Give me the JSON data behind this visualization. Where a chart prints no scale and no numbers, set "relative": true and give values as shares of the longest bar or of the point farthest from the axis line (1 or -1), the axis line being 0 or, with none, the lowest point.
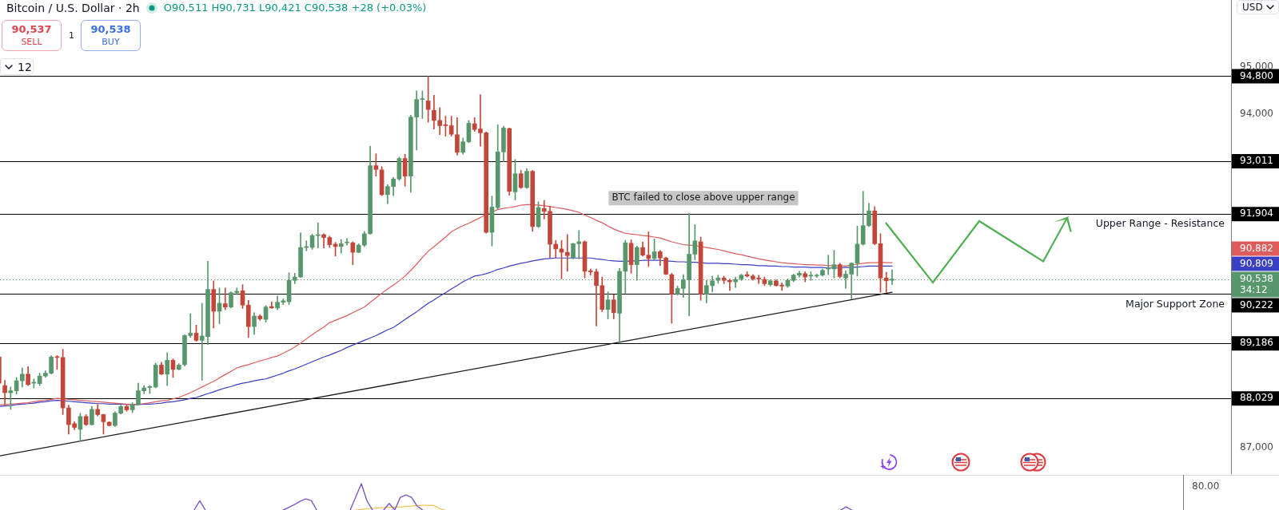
{
  "chart_data": [
    {
      "type": "candlestick",
      "title": "Bitcoin / U.S. Dollar · 2h",
      "subtitle": "O90,511 H90,731 L90,421 C90,538 +28 (+0.03%)",
      "categories": [
        null,
        null,
        null,
        null,
        null,
        null,
        null,
        null,
        null,
        null,
        null,
        null,
        null,
        null,
        null,
        null,
        null,
        null,
        null,
        null,
        null,
        null,
        null,
        null,
        null,
        null,
        null,
        null,
        null,
        null,
        null,
        null,
        null,
        null,
        null,
        null,
        null,
        null,
        null,
        null,
        null,
        null,
        null,
        null,
        null,
        null,
        null,
        null,
        null,
        null,
        null,
        null,
        null,
        null,
        null,
        null,
        null,
        null,
        null,
        null,
        null,
        null,
        null,
        null,
        null,
        null,
        null,
        null,
        null,
        null,
        null,
        null,
        null,
        null,
        null,
        null,
        null,
        null,
        null,
        null,
        null,
        null,
        null,
        null,
        null,
        null,
        null,
        null,
        null,
        null,
        null,
        null,
        null,
        null,
        null,
        null,
        null,
        null,
        null,
        null,
        null,
        null,
        null,
        null,
        null,
        null,
        null,
        null,
        null,
        null,
        null,
        null,
        null,
        null,
        null,
        null,
        null,
        null,
        null,
        null,
        null,
        null,
        null,
        null,
        null,
        null,
        null,
        null,
        null,
        null,
        null,
        null,
        null,
        null,
        null,
        null,
        null,
        null,
        null,
        null,
        null,
        null,
        null,
        null,
        null,
        null,
        null,
        null,
        null,
        null,
        null,
        null,
        null,
        null,
        null
      ],
      "ohlc": [
        [
          88900,
          88930,
          88320,
          88350
        ],
        [
          88300,
          88410,
          87890,
          88150
        ],
        [
          88150,
          88270,
          87800,
          88190
        ],
        [
          88190,
          88470,
          88120,
          88400
        ],
        [
          88400,
          88670,
          88270,
          88540
        ],
        [
          88540,
          88700,
          88300,
          88320
        ],
        [
          88350,
          88440,
          88250,
          88370
        ],
        [
          88340,
          88560,
          88300,
          88500
        ],
        [
          88500,
          88610,
          88470,
          88560
        ],
        [
          88560,
          88930,
          88540,
          88900
        ],
        [
          88900,
          88930,
          88640,
          88890
        ],
        [
          88890,
          89060,
          87690,
          87830
        ],
        [
          87830,
          87890,
          87280,
          87480
        ],
        [
          87500,
          87540,
          87370,
          87420
        ],
        [
          87380,
          87720,
          87130,
          87650
        ],
        [
          87650,
          87690,
          87460,
          87480
        ],
        [
          87480,
          87860,
          87470,
          87800
        ],
        [
          87800,
          87900,
          87660,
          87690
        ],
        [
          87690,
          87700,
          87280,
          87540
        ],
        [
          87530,
          87540,
          87450,
          87460
        ],
        [
          87460,
          87750,
          87440,
          87720
        ],
        [
          87720,
          87890,
          87700,
          87860
        ],
        [
          87860,
          87890,
          87760,
          87790
        ],
        [
          87790,
          87940,
          87730,
          87900
        ],
        [
          87900,
          88350,
          87890,
          88190
        ],
        [
          88190,
          88300,
          88130,
          88250
        ],
        [
          88260,
          88300,
          88130,
          88280
        ],
        [
          88270,
          88770,
          88250,
          88730
        ],
        [
          88730,
          88790,
          88530,
          88540
        ],
        [
          88540,
          88990,
          88300,
          88830
        ],
        [
          88830,
          88860,
          88470,
          88640
        ],
        [
          88640,
          88760,
          88630,
          88730
        ],
        [
          88740,
          89370,
          88710,
          89350
        ],
        [
          89350,
          89810,
          89310,
          89400
        ],
        [
          89400,
          89570,
          89230,
          89250
        ],
        [
          89250,
          90030,
          88410,
          89340
        ],
        [
          89330,
          90910,
          89160,
          90320
        ],
        [
          90320,
          90500,
          89510,
          89860
        ],
        [
          89860,
          90350,
          89600,
          90030
        ],
        [
          90020,
          90350,
          89890,
          89950
        ],
        [
          89950,
          90270,
          89930,
          90250
        ],
        [
          90250,
          90350,
          90210,
          90280
        ],
        [
          90290,
          90420,
          89920,
          89990
        ],
        [
          89990,
          90090,
          89310,
          89540
        ],
        [
          89540,
          89830,
          89370,
          89760
        ],
        [
          89760,
          89790,
          89670,
          89700
        ],
        [
          89690,
          89980,
          89630,
          89950
        ],
        [
          89960,
          90060,
          89920,
          89930
        ],
        [
          89930,
          90180,
          89890,
          90050
        ],
        [
          90050,
          90120,
          90000,
          90080
        ],
        [
          90060,
          90670,
          90000,
          90510
        ],
        [
          90510,
          90660,
          90440,
          90580
        ],
        [
          90580,
          91510,
          90570,
          91200
        ],
        [
          91200,
          91340,
          91130,
          91220
        ],
        [
          91200,
          91480,
          91160,
          91450
        ],
        [
          91450,
          91720,
          91190,
          91470
        ],
        [
          91470,
          91490,
          91190,
          91410
        ],
        [
          91410,
          91440,
          91200,
          91260
        ],
        [
          91270,
          91310,
          91020,
          91220
        ],
        [
          91220,
          91370,
          91080,
          91280
        ],
        [
          91300,
          91390,
          91250,
          91310
        ],
        [
          91300,
          91320,
          90840,
          91100
        ],
        [
          91100,
          91280,
          91090,
          91250
        ],
        [
          91250,
          91540,
          91220,
          91490
        ],
        [
          91490,
          93330,
          91480,
          92920
        ],
        [
          92920,
          93170,
          92700,
          92840
        ],
        [
          92830,
          92900,
          92290,
          92310
        ],
        [
          92310,
          92520,
          92120,
          92480
        ],
        [
          92480,
          92670,
          92290,
          92640
        ],
        [
          92640,
          93100,
          92610,
          93070
        ],
        [
          93070,
          93160,
          92490,
          92700
        ],
        [
          92700,
          93980,
          92360,
          93940
        ],
        [
          93940,
          94490,
          93250,
          94310
        ],
        [
          94310,
          94490,
          93910,
          94320
        ],
        [
          94280,
          94800,
          93830,
          94100
        ],
        [
          94080,
          94400,
          93690,
          93870
        ],
        [
          93870,
          94140,
          93570,
          93760
        ],
        [
          93780,
          93960,
          93540,
          93760
        ],
        [
          93760,
          93960,
          93540,
          93580
        ],
        [
          93570,
          93930,
          93140,
          93200
        ],
        [
          93200,
          93500,
          93160,
          93420
        ],
        [
          93420,
          93870,
          93400,
          93810
        ],
        [
          93800,
          93930,
          93640,
          93680
        ],
        [
          93690,
          94410,
          93330,
          93610
        ],
        [
          93610,
          93630,
          91500,
          91520
        ],
        [
          91520,
          92280,
          91230,
          92050
        ],
        [
          92040,
          93780,
          92010,
          93210
        ],
        [
          93210,
          93750,
          93000,
          93710
        ],
        [
          93700,
          93710,
          92300,
          92380
        ],
        [
          92370,
          93050,
          92200,
          92750
        ],
        [
          92750,
          92820,
          92440,
          92460
        ],
        [
          92460,
          92860,
          92440,
          92800
        ],
        [
          92800,
          92820,
          91540,
          91640
        ],
        [
          91640,
          92160,
          91620,
          92040
        ],
        [
          92020,
          92190,
          91800,
          91960
        ],
        [
          91960,
          92070,
          90990,
          91270
        ],
        [
          91270,
          91350,
          90990,
          91170
        ],
        [
          91170,
          91350,
          90540,
          91100
        ],
        [
          91100,
          91470,
          90700,
          91030
        ],
        [
          90990,
          91290,
          90960,
          91280
        ],
        [
          91280,
          91560,
          90960,
          91320
        ],
        [
          91320,
          91340,
          90560,
          90700
        ],
        [
          90710,
          90750,
          90620,
          90690
        ],
        [
          90690,
          90750,
          89550,
          90400
        ],
        [
          90400,
          90580,
          89850,
          89900
        ],
        [
          89900,
          90270,
          89700,
          90100
        ],
        [
          90100,
          90210,
          89700,
          89830
        ],
        [
          89820,
          90760,
          89190,
          90700
        ],
        [
          90700,
          91350,
          90240,
          91300
        ],
        [
          91290,
          91360,
          90660,
          90840
        ],
        [
          90840,
          91230,
          90510,
          91200
        ],
        [
          91200,
          91320,
          91020,
          91040
        ],
        [
          91040,
          91530,
          90800,
          90970
        ],
        [
          90970,
          91380,
          90940,
          91110
        ],
        [
          91110,
          91140,
          90820,
          90980
        ],
        [
          90980,
          91000,
          90630,
          90640
        ],
        [
          90630,
          90660,
          89610,
          90220
        ],
        [
          90220,
          90390,
          90200,
          90340
        ],
        [
          90340,
          90630,
          90150,
          90520
        ],
        [
          90520,
          91920,
          89760,
          91060
        ],
        [
          91060,
          91680,
          90940,
          91340
        ],
        [
          91320,
          91420,
          90090,
          90220
        ],
        [
          90220,
          90510,
          90040,
          90400
        ],
        [
          90400,
          90600,
          90270,
          90500
        ],
        [
          90510,
          90620,
          90450,
          90560
        ],
        [
          90560,
          90600,
          90440,
          90510
        ],
        [
          90510,
          90540,
          90300,
          90480
        ],
        [
          90480,
          90580,
          90360,
          90530
        ],
        [
          90540,
          90640,
          90510,
          90620
        ],
        [
          90630,
          90690,
          90580,
          90600
        ],
        [
          90600,
          90630,
          90510,
          90540
        ],
        [
          90560,
          90620,
          90440,
          90540
        ],
        [
          90530,
          90580,
          90400,
          90440
        ],
        [
          90420,
          90520,
          90390,
          90500
        ],
        [
          90500,
          90520,
          90390,
          90400
        ],
        [
          90410,
          90460,
          90300,
          90390
        ],
        [
          90390,
          90540,
          90360,
          90510
        ],
        [
          90510,
          90640,
          90480,
          90620
        ],
        [
          90620,
          90700,
          90580,
          90660
        ],
        [
          90650,
          90690,
          90480,
          90580
        ],
        [
          90600,
          90690,
          90510,
          90620
        ],
        [
          90600,
          90640,
          90570,
          90620
        ],
        [
          90620,
          90750,
          90600,
          90720
        ],
        [
          90750,
          91040,
          90630,
          90770
        ],
        [
          90750,
          91140,
          90560,
          90840
        ],
        [
          90840,
          90870,
          90560,
          90590
        ],
        [
          90560,
          90710,
          90340,
          90640
        ],
        [
          90640,
          90880,
          90120,
          90870
        ],
        [
          90870,
          91650,
          90600,
          91270
        ],
        [
          91270,
          92380,
          91250,
          91660
        ],
        [
          91660,
          92130,
          91640,
          91970
        ],
        [
          91970,
          92060,
          91260,
          91280
        ],
        [
          91280,
          91490,
          90260,
          90560
        ],
        [
          90560,
          90680,
          90250,
          90500
        ],
        [
          90511,
          90731,
          90421,
          90538
        ]
      ],
      "colors": [
        "#c2473a",
        "#c2473a",
        "#58976b",
        "#58976b",
        "#58976b",
        "#c2473a",
        "#58976b",
        "#58976b",
        "#58976b",
        "#58976b",
        "#c2473a",
        "#c2473a",
        "#c2473a",
        "#c2473a",
        "#58976b",
        "#c2473a",
        "#58976b",
        "#c2473a",
        "#c2473a",
        "#c2473a",
        "#58976b",
        "#58976b",
        "#c2473a",
        "#58976b",
        "#58976b",
        "#58976b",
        "#58976b",
        "#58976b",
        "#c2473a",
        "#58976b",
        "#c2473a",
        "#58976b",
        "#58976b",
        "#58976b",
        "#c2473a",
        "#58976b",
        "#58976b",
        "#c2473a",
        "#58976b",
        "#c2473a",
        "#58976b",
        "#58976b",
        "#c2473a",
        "#c2473a",
        "#58976b",
        "#c2473a",
        "#58976b",
        "#c2473a",
        "#58976b",
        "#58976b",
        "#58976b",
        "#58976b",
        "#58976b",
        "#58976b",
        "#58976b",
        "#58976b",
        "#c2473a",
        "#c2473a",
        "#c2473a",
        "#58976b",
        "#58976b",
        "#c2473a",
        "#58976b",
        "#58976b",
        "#58976b",
        "#c2473a",
        "#c2473a",
        "#58976b",
        "#58976b",
        "#58976b",
        "#c2473a",
        "#58976b",
        "#58976b",
        "#58976b",
        "#c2473a",
        "#c2473a",
        "#c2473a",
        "#c2473a",
        "#c2473a",
        "#c2473a",
        "#58976b",
        "#58976b",
        "#c2473a",
        "#c2473a",
        "#c2473a",
        "#58976b",
        "#58976b",
        "#58976b",
        "#c2473a",
        "#58976b",
        "#c2473a",
        "#58976b",
        "#c2473a",
        "#58976b",
        "#c2473a",
        "#c2473a",
        "#c2473a",
        "#c2473a",
        "#c2473a",
        "#58976b",
        "#58976b",
        "#c2473a",
        "#c2473a",
        "#c2473a",
        "#c2473a",
        "#58976b",
        "#c2473a",
        "#58976b",
        "#58976b",
        "#c2473a",
        "#58976b",
        "#c2473a",
        "#c2473a",
        "#58976b",
        "#c2473a",
        "#c2473a",
        "#c2473a",
        "#58976b",
        "#58976b",
        "#58976b",
        "#58976b",
        "#c2473a",
        "#58976b",
        "#58976b",
        "#58976b",
        "#c2473a",
        "#c2473a",
        "#58976b",
        "#58976b",
        "#c2473a",
        "#c2473a",
        "#c2473a",
        "#c2473a",
        "#58976b",
        "#c2473a",
        "#c2473a",
        "#58976b",
        "#58976b",
        "#58976b",
        "#c2473a",
        "#58976b",
        "#58976b",
        "#58976b",
        "#58976b",
        "#58976b",
        "#c2473a",
        "#58976b",
        "#58976b",
        "#58976b",
        "#58976b",
        "#58976b",
        "#c2473a",
        "#c2473a",
        "#c2473a",
        "#58976b"
      ],
      "series": [
        {
          "type": "line",
          "color": "#e05c5c",
          "values": [
            87890,
            87900,
            87910,
            87920,
            87930,
            87940,
            87960,
            87980,
            87990,
            88010,
            88030,
            88020,
            88010,
            88000,
            87990,
            87980,
            87970,
            87960,
            87950,
            87940,
            87930,
            87920,
            87910,
            87900,
            87910,
            87920,
            87940,
            87960,
            87980,
            87990,
            88020,
            88050,
            88100,
            88150,
            88210,
            88270,
            88330,
            88390,
            88460,
            88530,
            88600,
            88670,
            88710,
            88740,
            88780,
            88820,
            88850,
            88890,
            88920,
            88980,
            89040,
            89110,
            89190,
            89280,
            89370,
            89450,
            89530,
            89620,
            89670,
            89720,
            89770,
            89830,
            89890,
            89950,
            90050,
            90140,
            90240,
            90330,
            90410,
            90500,
            90600,
            90720,
            90850,
            90990,
            91120,
            91220,
            91320,
            91420,
            91530,
            91600,
            91660,
            91710,
            91770,
            91830,
            91890,
            91940,
            92000,
            92020,
            92040,
            92060,
            92090,
            92100,
            92100,
            92090,
            92080,
            92060,
            92040,
            92020,
            92000,
            91970,
            91940,
            91880,
            91830,
            91770,
            91720,
            91650,
            91590,
            91540,
            91500,
            91480,
            91470,
            91450,
            91440,
            91420,
            91400,
            91360,
            91320,
            91290,
            91260,
            91250,
            91240,
            91220,
            91200,
            91180,
            91160,
            91130,
            91100,
            91070,
            91050,
            91020,
            90990,
            90960,
            90940,
            90920,
            90900,
            90880,
            90870,
            90860,
            90850,
            90840,
            90840,
            90830,
            90830,
            90820,
            90820,
            90810,
            90810,
            90830,
            90850,
            90870,
            90880,
            90880,
            90890,
            90880,
            90882
          ]
        },
        {
          "type": "line",
          "color": "#3b3fc4",
          "values": [
            87860,
            87870,
            87880,
            87900,
            87910,
            87920,
            87930,
            87950,
            87960,
            87980,
            87990,
            87980,
            87970,
            87960,
            87950,
            87940,
            87930,
            87920,
            87920,
            87910,
            87910,
            87910,
            87900,
            87900,
            87900,
            87910,
            87910,
            87920,
            87930,
            87950,
            87960,
            87980,
            88000,
            88030,
            88050,
            88090,
            88130,
            88170,
            88210,
            88250,
            88280,
            88320,
            88350,
            88370,
            88400,
            88420,
            88440,
            88480,
            88520,
            88560,
            88610,
            88650,
            88700,
            88750,
            88800,
            88850,
            88900,
            88940,
            88990,
            89040,
            89100,
            89150,
            89200,
            89250,
            89300,
            89350,
            89410,
            89470,
            89520,
            89600,
            89690,
            89770,
            89850,
            89940,
            90030,
            90100,
            90180,
            90250,
            90330,
            90400,
            90480,
            90540,
            90600,
            90620,
            90650,
            90690,
            90740,
            90770,
            90810,
            90840,
            90870,
            90890,
            90920,
            90940,
            90960,
            90970,
            90980,
            90980,
            90980,
            90980,
            90980,
            90980,
            90980,
            90960,
            90950,
            90930,
            90920,
            90910,
            90910,
            90920,
            90920,
            90930,
            90930,
            90930,
            90930,
            90920,
            90910,
            90900,
            90900,
            90890,
            90890,
            90880,
            90870,
            90870,
            90870,
            90860,
            90860,
            90850,
            90840,
            90840,
            90830,
            90820,
            90820,
            90810,
            90810,
            90800,
            90800,
            90790,
            90790,
            90790,
            90780,
            90780,
            90780,
            90770,
            90770,
            90770,
            90780,
            90780,
            90790,
            90800,
            90810,
            90810,
            90810,
            90810,
            90809
          ]
        },
        {
          "type": "line",
          "color": "#1a1a1a",
          "values": [
            86820,
            null,
            null,
            null,
            null,
            null,
            null,
            null,
            null,
            null,
            null,
            null,
            null,
            null,
            null,
            null,
            null,
            null,
            null,
            null,
            null,
            null,
            null,
            null,
            null,
            null,
            null,
            null,
            null,
            null,
            null,
            null,
            null,
            null,
            null,
            null,
            null,
            null,
            null,
            null,
            null,
            null,
            null,
            null,
            null,
            null,
            null,
            null,
            null,
            null,
            null,
            null,
            null,
            null,
            null,
            null,
            null,
            null,
            null,
            null,
            null,
            null,
            null,
            null,
            null,
            null,
            null,
            null,
            null,
            null,
            null,
            null,
            null,
            null,
            null,
            null,
            null,
            null,
            null,
            null,
            null,
            null,
            null,
            null,
            null,
            null,
            null,
            null,
            null,
            null,
            null,
            null,
            null,
            null,
            null,
            null,
            null,
            null,
            null,
            null,
            null,
            null,
            null,
            null,
            null,
            null,
            null,
            null,
            null,
            null,
            null,
            null,
            null,
            null,
            null,
            null,
            null,
            null,
            null,
            null,
            null,
            null,
            null,
            null,
            null,
            null,
            null,
            null,
            null,
            null,
            null,
            null,
            null,
            null,
            null,
            null,
            null,
            null,
            null,
            null,
            null,
            null,
            null,
            null,
            null,
            null,
            null,
            null,
            null,
            null,
            null,
            null,
            null,
            null,
            90260
          ]
        }
      ],
      "ref_lines": [
        {
          "axis": "y",
          "value": 94800,
          "label": "94,800",
          "color": "#000000"
        },
        {
          "axis": "y",
          "value": 93011,
          "label": "93,011",
          "color": "#000000"
        },
        {
          "axis": "y",
          "value": 91904,
          "label": "91,904",
          "color": "#000000"
        },
        {
          "axis": "y",
          "value": 90222,
          "label": "90,222",
          "color": "#000000"
        },
        {
          "axis": "y",
          "value": 89186,
          "label": "89,186",
          "color": "#000000"
        },
        {
          "axis": "y",
          "value": 88029,
          "label": "88,029",
          "color": "#000000"
        },
        {
          "axis": "y",
          "value": 90538,
          "label": "90,538",
          "color": "#58976b",
          "line_style": "dotted"
        }
      ],
      "annotations": [
        {
          "text": "BTC failed to close above upper range",
          "y": 91904
        },
        {
          "text": "Upper Range - Resistance",
          "y": 91904
        },
        {
          "text": "Major Support Zone",
          "y": 90222
        },
        "34:12",
        "90,882",
        "90,809",
        "90,537",
        "SELL",
        "1",
        "90,538",
        "BUY",
        "12",
        "USD"
      ],
      "ylim": [
        86440,
        96400
      ],
      "yticks": [
        {
          "value": 87000,
          "label": "87,000"
        },
        {
          "value": 94000,
          "label": "94,000"
        },
        {
          "value": 95000,
          "label": "95,000"
        }
      ],
      "tick_labels": "y"
    },
    {
      "type": "line",
      "relative": true,
      "categories": [
        null,
        null,
        null,
        null,
        null,
        null,
        null,
        null,
        null,
        null,
        null,
        null,
        null,
        null,
        null,
        null,
        null,
        null,
        null,
        null,
        null,
        null,
        null,
        null,
        null,
        null,
        null,
        null,
        null,
        null,
        null,
        null,
        null,
        null,
        null,
        null,
        null,
        null,
        null,
        null,
        null,
        null,
        null,
        null,
        null,
        null,
        null,
        null,
        null,
        null,
        null,
        null,
        null,
        null,
        null,
        null,
        null,
        null,
        null,
        null,
        null,
        null,
        null,
        null,
        null,
        null,
        null,
        null,
        null,
        null,
        null,
        null,
        null,
        null,
        null,
        null,
        null,
        null,
        null,
        null,
        null,
        null,
        null,
        null,
        null,
        null,
        null,
        null,
        null,
        null,
        null,
        null,
        null,
        null,
        null,
        null,
        null,
        null,
        null,
        null,
        null,
        null,
        null,
        null,
        null,
        null,
        null,
        null,
        null,
        null,
        null,
        null,
        null,
        null,
        null,
        null,
        null,
        null,
        null,
        null,
        null,
        null,
        null,
        null,
        null,
        null,
        null,
        null,
        null,
        null,
        null,
        null,
        null,
        null,
        null,
        null,
        null,
        null,
        null,
        null,
        null,
        null,
        null,
        null,
        null,
        null,
        null,
        null,
        null,
        null,
        null,
        null,
        null,
        null,
        null
      ],
      "series": [
        {
          "color": "#7e57c2",
          "values": [
            null,
            null,
            null,
            null,
            null,
            null,
            null,
            null,
            null,
            null,
            null,
            null,
            null,
            null,
            null,
            null,
            null,
            null,
            null,
            null,
            null,
            null,
            null,
            null,
            null,
            null,
            null,
            null,
            null,
            null,
            null,
            null,
            null,
            null,
            null,
            0,
            0.35,
            0,
            null,
            null,
            null,
            null,
            null,
            null,
            null,
            null,
            null,
            null,
            null,
            null,
            null,
            0,
            0.1,
            0.21,
            0.33,
            0.42,
            0.36,
            0,
            null,
            null,
            null,
            null,
            null,
            0,
            0.5,
            1,
            0.35,
            0,
            null,
            0,
            0.25,
            0,
            0.48,
            0.57,
            0.48,
            0.15,
            0,
            null,
            null,
            null,
            null,
            null,
            null,
            null,
            null,
            null,
            null,
            null,
            null,
            null,
            null,
            null,
            null,
            null,
            null,
            null,
            null,
            null,
            null,
            null,
            null,
            null,
            null,
            null,
            null,
            null,
            null,
            null,
            null,
            null,
            null,
            null,
            null,
            null,
            null,
            null,
            null,
            null,
            null,
            null,
            null,
            null,
            null,
            null,
            null,
            null,
            null,
            null,
            null,
            null,
            null,
            null,
            null,
            null,
            null,
            null,
            null,
            null,
            null,
            null,
            null,
            null,
            null,
            null,
            null,
            null,
            null,
            null,
            null,
            null,
            null,
            0,
            0.12,
            0,
            null
          ]
        },
        {
          "color": "#f2c14e",
          "values": [
            null,
            null,
            null,
            null,
            null,
            null,
            null,
            null,
            null,
            null,
            null,
            null,
            null,
            null,
            null,
            null,
            null,
            null,
            null,
            null,
            null,
            null,
            null,
            null,
            null,
            null,
            null,
            null,
            null,
            null,
            null,
            null,
            null,
            null,
            null,
            null,
            null,
            null,
            null,
            null,
            null,
            null,
            null,
            null,
            null,
            null,
            null,
            null,
            null,
            null,
            null,
            null,
            null,
            null,
            null,
            null,
            null,
            null,
            null,
            null,
            null,
            null,
            null,
            null,
            0,
            0.02,
            0.05,
            0.06,
            0.08,
            0.09,
            0.1,
            0.11,
            0.12,
            0.14,
            0.15,
            0.17,
            0.18,
            0.18,
            0.17,
            0.05,
            0,
            null,
            null,
            null,
            null,
            null,
            null,
            null,
            null,
            null,
            null,
            null,
            null,
            null,
            null,
            null,
            null,
            null,
            null,
            null,
            null,
            null,
            null,
            null,
            null,
            null,
            null,
            null,
            null,
            null,
            null,
            null,
            null,
            null,
            null,
            null,
            null,
            null,
            null,
            null,
            null,
            null,
            null,
            null,
            null,
            null,
            null,
            null,
            null,
            null,
            null,
            null,
            null,
            null,
            null,
            null,
            null,
            null,
            null,
            null,
            null,
            null,
            null,
            null,
            null,
            null,
            null,
            null,
            null,
            null,
            null,
            null,
            null,
            null,
            null
          ]
        }
      ],
      "annotations": [
        "80.00"
      ],
      "tick_labels": false
    }
  ]
}
